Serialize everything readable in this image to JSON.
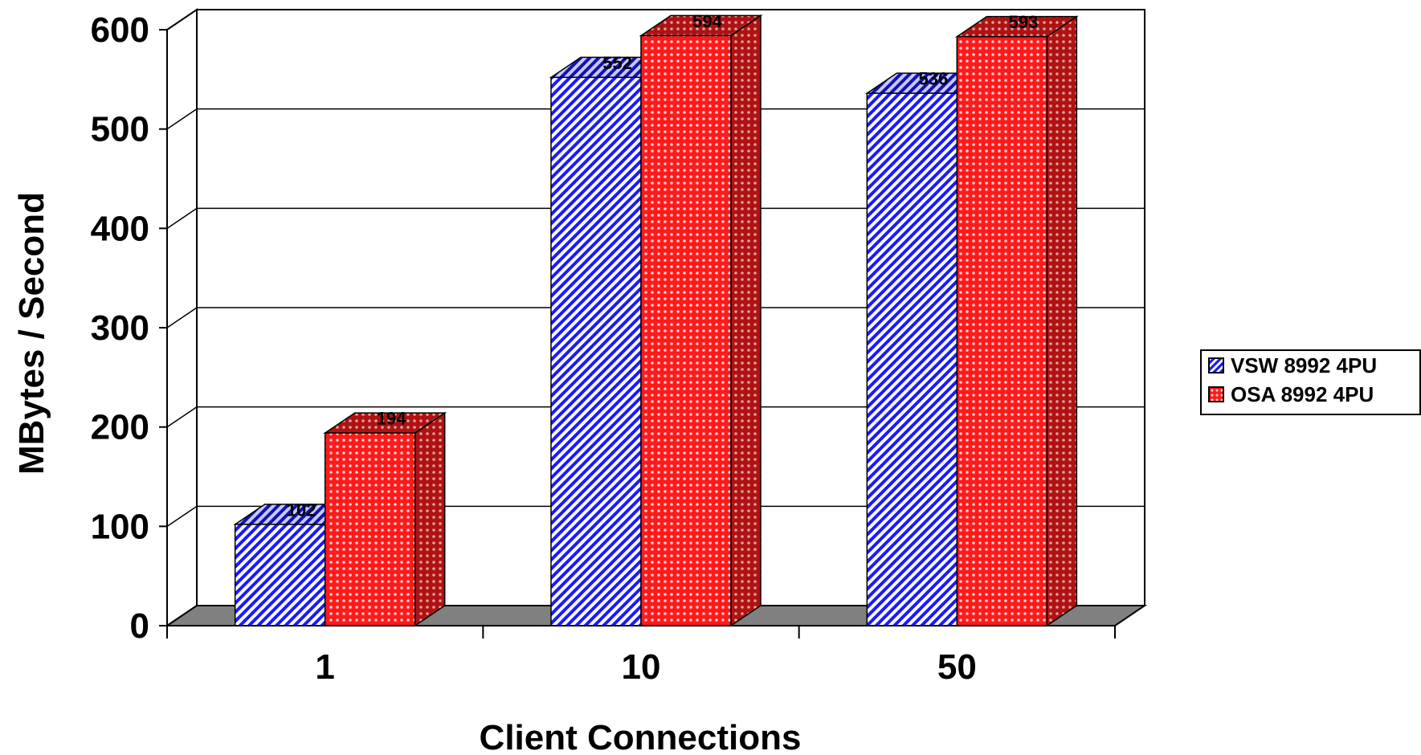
{
  "chart_data": {
    "type": "bar",
    "style": "3d-clustered-column",
    "categories": [
      "1",
      "10",
      "50"
    ],
    "series": [
      {
        "name": "VSW 8992 4PU",
        "values": [
          102,
          552,
          536
        ],
        "color": "#1a1aff",
        "pattern": "diagonal-stripes"
      },
      {
        "name": "OSA 8992 4PU",
        "values": [
          194,
          594,
          593
        ],
        "color": "#ff1a1a",
        "pattern": "dots"
      }
    ],
    "ylabel": "MBytes / Second",
    "xlabel": "Client Connections",
    "ylim": [
      0,
      600
    ],
    "yticks": [
      0,
      100,
      200,
      300,
      400,
      500,
      600
    ],
    "grid": true,
    "legend_position": "right",
    "floor_color": "#808080"
  }
}
